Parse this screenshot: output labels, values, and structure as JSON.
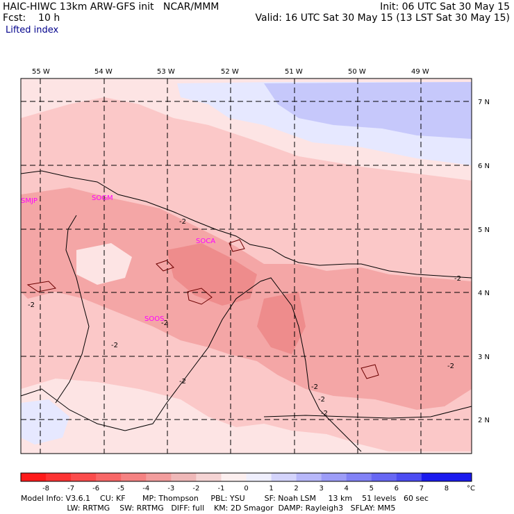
{
  "header": {
    "model_line": "HAIC-HIWC 13km ARW-GFS init   NCAR/MMM",
    "forecast_line": "Fcst:    10 h",
    "init_line": "Init: 06 UTC Sat 30 May 15",
    "valid_line": "Valid: 16 UTC Sat 30 May 15 (13 LST Sat 30 May 15)",
    "field_name": "Lifted index"
  },
  "map": {
    "lon_labels": [
      "55 W",
      "54 W",
      "53 W",
      "52 W",
      "51 W",
      "50 W",
      "49 W"
    ],
    "lat_labels": [
      "7 N",
      "6 N",
      "5 N",
      "4 N",
      "3 N",
      "2 N"
    ],
    "stations": [
      "SMJP",
      "SOGM",
      "SOCA",
      "SOOS"
    ],
    "contour_labels": [
      "-2",
      "-2",
      "-2",
      "-2",
      "-2",
      "-2",
      "-2",
      "-2",
      "-2",
      "-2"
    ],
    "colors": {
      "very_light_red": "#fde4e4",
      "light_red": "#fbc8c8",
      "medium_red": "#f4a6a6",
      "stronger_red": "#ee8c8c",
      "light_blue": "#e6e8ff",
      "medium_blue": "#c6c8fb",
      "grid": "#000000",
      "station": "#ff00ff"
    }
  },
  "colorbar": {
    "ticks": [
      "-8",
      "-7",
      "-6",
      "-5",
      "-4",
      "-3",
      "-2",
      "-1",
      "0",
      "1",
      "2",
      "3",
      "4",
      "5",
      "6",
      "7",
      "8"
    ],
    "unit": "°C",
    "swatches": [
      "#ff1a1a",
      "#fd3333",
      "#fb4c4c",
      "#f86767",
      "#f58282",
      "#f29d9d",
      "#efb8b8",
      "#f5d4d4",
      "#fcefef",
      "#efeffd",
      "#d4d4fc",
      "#b8b8fa",
      "#9d9df8",
      "#8282f6",
      "#6767f4",
      "#4c4cf2",
      "#1a1aee"
    ]
  },
  "footer": {
    "line1": "Model Info: V3.6.1    CU: KF       MP: Thompson     PBL: YSU        SF: Noah LSM     13 km    51 levels   60 sec",
    "line2": "                   LW: RRTMG    SW: RRTMG   DIFF: full    KM: 2D Smagor  DAMP: Rayleigh3   SFLAY: MM5"
  }
}
